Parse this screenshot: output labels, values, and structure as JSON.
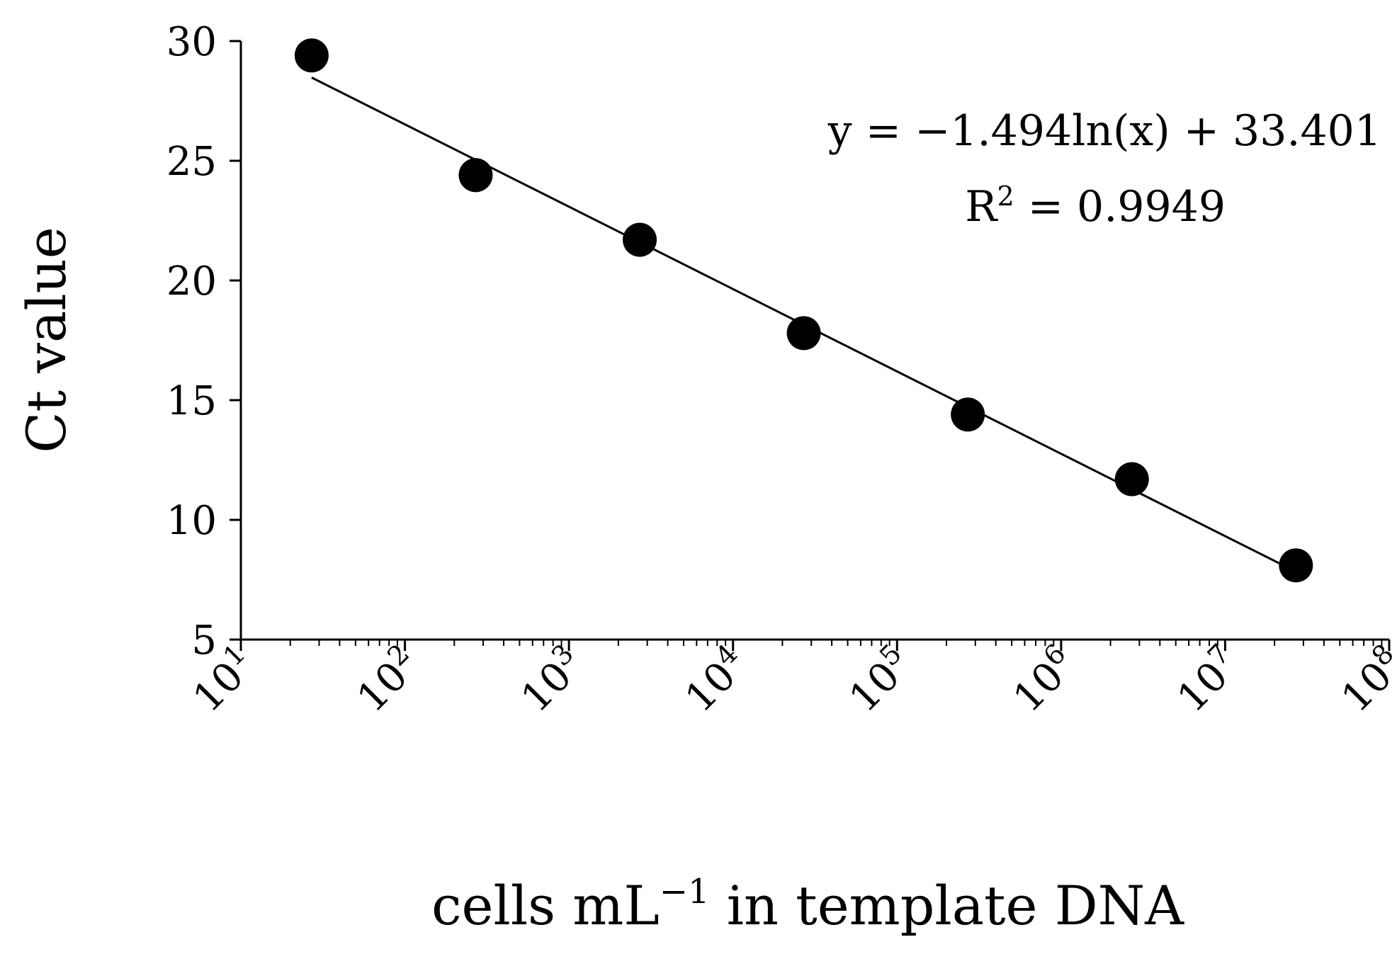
{
  "chart_data": {
    "type": "scatter",
    "title": "",
    "xlabel": "cells mL",
    "xlabel_sup": "−1",
    "xlabel_rest": " in template DNA",
    "ylabel": "Ct value",
    "x_scale": "log",
    "xlim": [
      10,
      100000000
    ],
    "ylim": [
      5,
      30
    ],
    "x_ticks": [
      {
        "base": "10",
        "exp": "1"
      },
      {
        "base": "10",
        "exp": "2"
      },
      {
        "base": "10",
        "exp": "3"
      },
      {
        "base": "10",
        "exp": "4"
      },
      {
        "base": "10",
        "exp": "5"
      },
      {
        "base": "10",
        "exp": "6"
      },
      {
        "base": "10",
        "exp": "7"
      },
      {
        "base": "10",
        "exp": "8"
      }
    ],
    "y_ticks": [
      "5",
      "10",
      "15",
      "20",
      "25",
      "30"
    ],
    "grid": false,
    "legend": "none",
    "points": [
      {
        "x": 27,
        "y": 29.4
      },
      {
        "x": 270,
        "y": 24.4
      },
      {
        "x": 2700,
        "y": 21.7
      },
      {
        "x": 27000,
        "y": 17.8
      },
      {
        "x": 270000,
        "y": 14.4
      },
      {
        "x": 2700000,
        "y": 11.7
      },
      {
        "x": 27000000,
        "y": 8.1
      }
    ],
    "trendline": {
      "type": "log",
      "slope": -1.494,
      "intercept": 33.401,
      "x_from": 27,
      "x_to": 27000000
    },
    "equation_text": "y = −1.494ln(x) + 33.401",
    "r2_text_prefix": "R",
    "r2_text_sup": "2",
    "r2_text_rest": " = 0.9949",
    "colors": {
      "marker": "#000000",
      "line": "#000000"
    }
  }
}
